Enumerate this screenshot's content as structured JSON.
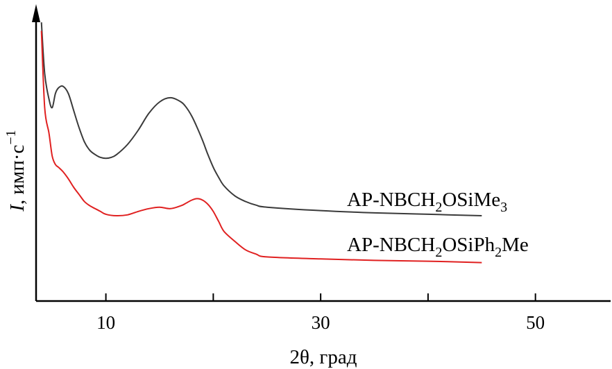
{
  "chart_data": {
    "type": "line",
    "xlabel": "2θ, град",
    "ylabel": "I, имп·с⁻¹",
    "ylabel_parts": {
      "symbol": "I",
      "rest": ", имп·с",
      "sup": "−1"
    },
    "xlim": [
      3.5,
      57
    ],
    "ylim": [
      0,
      100
    ],
    "x_ticks": [
      10,
      20,
      30,
      40,
      50
    ],
    "x_tick_labels": [
      "10",
      "30",
      "50"
    ],
    "x_tick_label_values": [
      10,
      30,
      50
    ],
    "grid": false,
    "legend": "inline labels at right end of curves",
    "series": [
      {
        "name": "AP-NBCH2OSiMe3",
        "label_parts": [
          "AP-NBCH",
          "2",
          "OSiMe",
          "3"
        ],
        "color": "#3a3a3a",
        "x": [
          4.0,
          4.3,
          4.7,
          5.0,
          5.3,
          5.6,
          6.0,
          6.5,
          7.0,
          7.5,
          8.0,
          8.5,
          9.0,
          9.5,
          10.0,
          10.5,
          11.0,
          12.0,
          13.0,
          14.0,
          15.0,
          16.0,
          17.0,
          17.5,
          18.0,
          18.5,
          19.0,
          19.5,
          20.0,
          20.5,
          21.0,
          22.0,
          23.0,
          24.0,
          25.0,
          30.0,
          35.0,
          40.0,
          45.0
        ],
        "y": [
          98.0,
          80.0,
          71.0,
          68.0,
          73.0,
          75.0,
          75.5,
          73.0,
          67.0,
          61.0,
          56.0,
          53.0,
          51.5,
          50.5,
          50.2,
          50.5,
          51.5,
          55.0,
          60.0,
          66.0,
          70.0,
          71.5,
          70.0,
          68.0,
          65.0,
          61.0,
          56.5,
          51.5,
          47.0,
          43.5,
          40.5,
          37.0,
          35.0,
          33.7,
          33.0,
          31.8,
          31.0,
          30.5,
          30.0
        ]
      },
      {
        "name": "AP-NBCH2OSiPh2Me",
        "label_parts": [
          "AP-NBCH",
          "2",
          "OSiPh",
          "2",
          "Me"
        ],
        "color": "#e02020",
        "x": [
          4.0,
          4.3,
          4.7,
          5.0,
          5.3,
          5.6,
          6.0,
          6.5,
          7.0,
          7.5,
          8.0,
          8.5,
          9.0,
          9.5,
          10.0,
          11.0,
          12.0,
          13.0,
          14.0,
          15.0,
          16.0,
          17.0,
          17.5,
          18.0,
          18.5,
          19.0,
          19.5,
          20.0,
          20.5,
          21.0,
          22.0,
          23.0,
          24.0,
          25.0,
          30.0,
          35.0,
          40.0,
          45.0
        ],
        "y": [
          95.0,
          68.0,
          59.0,
          51.0,
          48.0,
          47.0,
          45.5,
          43.0,
          40.0,
          37.5,
          35.0,
          33.5,
          32.5,
          31.5,
          30.5,
          30.0,
          30.3,
          31.5,
          32.5,
          33.0,
          32.5,
          33.5,
          34.5,
          35.5,
          36.0,
          35.5,
          34.0,
          31.5,
          28.0,
          24.5,
          21.0,
          18.0,
          16.5,
          15.5,
          14.8,
          14.3,
          14.0,
          13.5
        ]
      }
    ]
  }
}
